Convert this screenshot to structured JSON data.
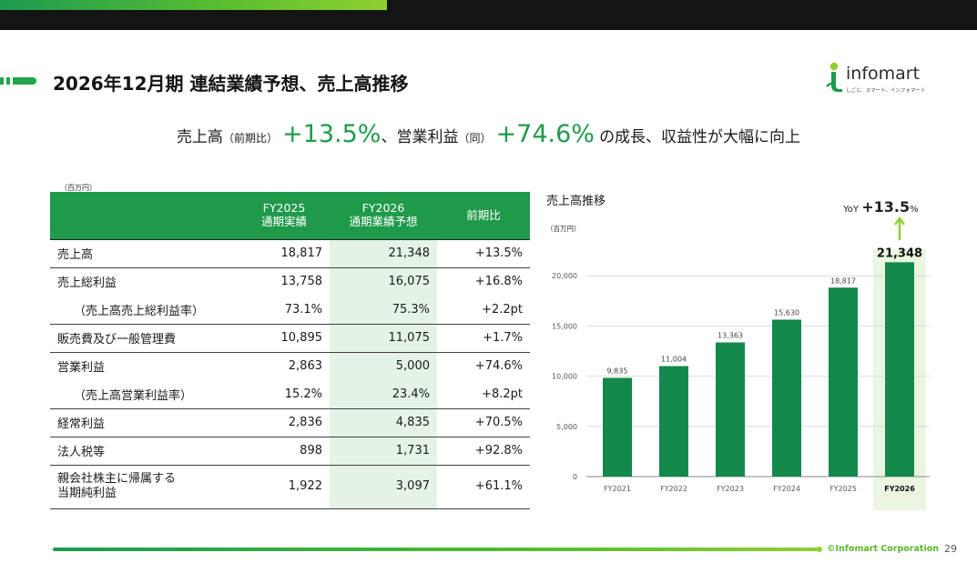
{
  "header": {
    "title": "2026年12月期 連結業績予想、売上高推移",
    "logo_text": "infomart",
    "logo_tagline": "しごと、スマート。インフォマート"
  },
  "headline": {
    "part1": "売上高",
    "part1_note": "（前期比）",
    "sales_growth": "+13.5%",
    "part2": "、営業利益",
    "part2_note": "（同）",
    "op_growth": "+74.6%",
    "part3": "の成長、収益性が大幅に向上"
  },
  "table": {
    "unit": "（百万円）",
    "headers": [
      {
        "line1": "",
        "line2": ""
      },
      {
        "line1": "FY2025",
        "line2": "通期実績"
      },
      {
        "line1": "FY2026",
        "line2": "通期業績予想"
      },
      {
        "line1": "前期比",
        "line2": ""
      }
    ],
    "rows": [
      {
        "label": "売上高",
        "fy2025": "18,817",
        "fy2026": "21,348",
        "change": "+13.5%"
      },
      {
        "label": "売上総利益",
        "fy2025": "13,758",
        "fy2026": "16,075",
        "change": "+16.8%"
      },
      {
        "label": "（売上高売上総利益率）",
        "fy2025": "73.1%",
        "fy2026": "75.3%",
        "change": "+2.2pt"
      },
      {
        "label": "販売費及び一般管理費",
        "fy2025": "10,895",
        "fy2026": "11,075",
        "change": "+1.7%"
      },
      {
        "label": "営業利益",
        "fy2025": "2,863",
        "fy2026": "5,000",
        "change": "+74.6%"
      },
      {
        "label": "（売上高営業利益率）",
        "fy2025": "15.2%",
        "fy2026": "23.4%",
        "change": "+8.2pt"
      },
      {
        "label": "経常利益",
        "fy2025": "2,836",
        "fy2026": "4,835",
        "change": "+70.5%"
      },
      {
        "label": "法人税等",
        "fy2025": "898",
        "fy2026": "1,731",
        "change": "+92.8%"
      },
      {
        "label_line1": "親会社株主に帰属する",
        "label_line2": "当期純利益",
        "fy2025": "1,922",
        "fy2026": "3,097",
        "change": "+61.1%"
      }
    ]
  },
  "chart_data": {
    "type": "bar",
    "title": "売上高推移",
    "ylabel": "（百万円）",
    "categories": [
      "FY2021",
      "FY2022",
      "FY2023",
      "FY2024",
      "FY2025",
      "FY2026"
    ],
    "values": [
      9835,
      11004,
      13363,
      15630,
      18817,
      21348
    ],
    "value_labels": [
      "9,835",
      "11,004",
      "13,363",
      "15,630",
      "18,817",
      "21,348"
    ],
    "yticks": [
      0,
      5000,
      10000,
      15000,
      20000
    ],
    "ytick_labels": [
      "0",
      "5,000",
      "10,000",
      "15,000",
      "20,000"
    ],
    "ylim": [
      0,
      25000
    ],
    "highlight_category": "FY2026",
    "yoy_prefix": "YoY",
    "yoy_value": "+13.5",
    "yoy_suffix": "%",
    "grid": true
  },
  "colors": {
    "brand_green": "#1f9a4a",
    "bar_green": "#12894a",
    "highlight_bg": "#e5f3e7",
    "accent_lime": "#8fd031"
  },
  "footer": {
    "copyright": "©Infomart Corporation",
    "page_number": "29"
  }
}
